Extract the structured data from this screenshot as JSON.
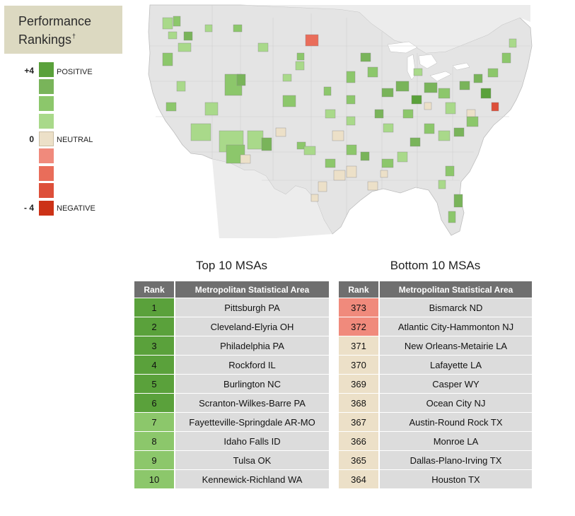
{
  "colors": {
    "pos4": "#5aa13b",
    "pos3": "#79b45a",
    "pos2": "#8cc76b",
    "pos1": "#a9d98a",
    "neutral": "#ece0c8",
    "neg1": "#f08a7c",
    "neg2": "#e96d5a",
    "neg3": "#dd4f3a",
    "neg4": "#cc3217",
    "map_land": "#e4e4e4",
    "water": "#ffffff"
  },
  "title": {
    "line1": "Performance",
    "line2": "Rankings",
    "mark": "†"
  },
  "legend": {
    "top_value": "+4",
    "mid_value": "0",
    "bottom_value": "- 4",
    "positive": "POSITIVE",
    "neutral": "NEUTRAL",
    "negative": "NEGATIVE"
  },
  "top_table": {
    "title": "Top 10 MSAs",
    "headers": [
      "Rank",
      "Metropolitan Statistical Area"
    ],
    "rows": [
      {
        "rank": "1",
        "msa": "Pittsburgh PA",
        "color": "#5aa13b"
      },
      {
        "rank": "2",
        "msa": "Cleveland-Elyria OH",
        "color": "#5aa13b"
      },
      {
        "rank": "3",
        "msa": "Philadelphia PA",
        "color": "#5aa13b"
      },
      {
        "rank": "4",
        "msa": "Rockford IL",
        "color": "#5aa13b"
      },
      {
        "rank": "5",
        "msa": "Burlington NC",
        "color": "#5aa13b"
      },
      {
        "rank": "6",
        "msa": "Scranton-Wilkes-Barre PA",
        "color": "#5aa13b"
      },
      {
        "rank": "7",
        "msa": "Fayetteville-Springdale AR-MO",
        "color": "#8cc76b"
      },
      {
        "rank": "8",
        "msa": "Idaho Falls ID",
        "color": "#8cc76b"
      },
      {
        "rank": "9",
        "msa": "Tulsa OK",
        "color": "#8cc76b"
      },
      {
        "rank": "10",
        "msa": "Kennewick-Richland WA",
        "color": "#8cc76b"
      }
    ]
  },
  "bottom_table": {
    "title": "Bottom 10 MSAs",
    "headers": [
      "Rank",
      "Metropolitan Statistical Area"
    ],
    "rows": [
      {
        "rank": "373",
        "msa": "Bismarck ND",
        "color": "#f08a7c"
      },
      {
        "rank": "372",
        "msa": "Atlantic City-Hammonton NJ",
        "color": "#f08a7c"
      },
      {
        "rank": "371",
        "msa": "New Orleans-Metairie LA",
        "color": "#ece0c8"
      },
      {
        "rank": "370",
        "msa": "Lafayette LA",
        "color": "#ece0c8"
      },
      {
        "rank": "369",
        "msa": "Casper WY",
        "color": "#ece0c8"
      },
      {
        "rank": "368",
        "msa": "Ocean City NJ",
        "color": "#ece0c8"
      },
      {
        "rank": "367",
        "msa": "Austin-Round Rock TX",
        "color": "#ece0c8"
      },
      {
        "rank": "366",
        "msa": "Monroe LA",
        "color": "#ece0c8"
      },
      {
        "rank": "365",
        "msa": "Dallas-Plano-Irving TX",
        "color": "#ece0c8"
      },
      {
        "rank": "364",
        "msa": "Houston TX",
        "color": "#ece0c8"
      }
    ]
  }
}
